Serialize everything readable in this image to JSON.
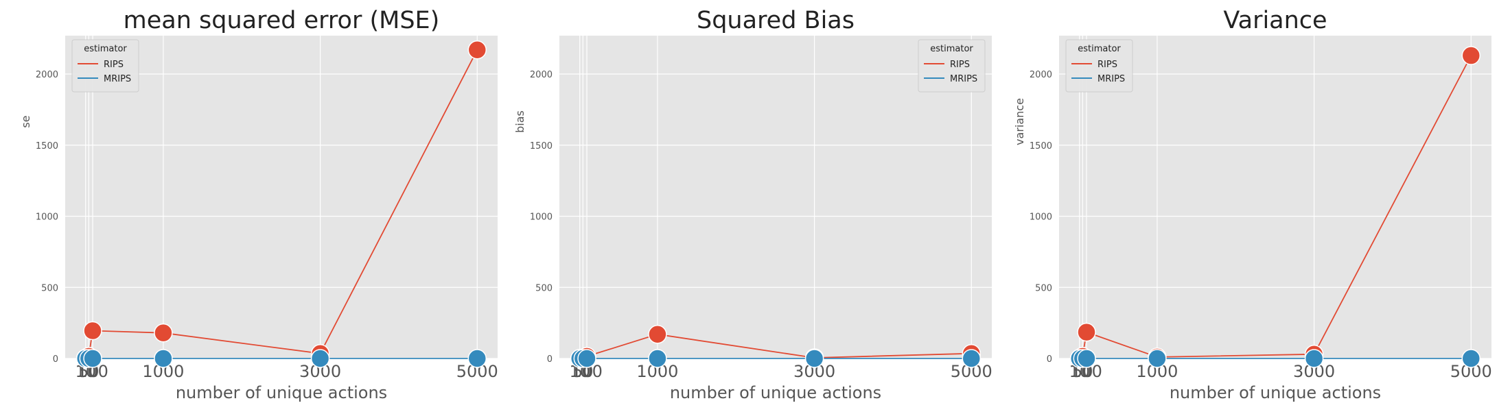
{
  "figure": {
    "background": "#ffffff"
  },
  "style": {
    "plot_bg": "#e5e5e5",
    "grid_color": "#ffffff",
    "tick_color": "#555555",
    "label_color": "#555555",
    "title_color": "#222222",
    "rips_color": "#e24a33",
    "mrips_color": "#348abd"
  },
  "chart_data": [
    {
      "type": "line",
      "title": "mean squared error (MSE)",
      "xlabel": "number of unique actions",
      "ylabel": "se",
      "x": [
        10,
        50,
        100,
        1000,
        3000,
        5000
      ],
      "x_tick_labels": [
        "10",
        "50",
        "100",
        "1000",
        "3000",
        "5000"
      ],
      "xlim": [
        -250,
        5260
      ],
      "ylim": [
        0,
        2270
      ],
      "yticks": [
        0,
        500,
        1000,
        1500,
        2000
      ],
      "grid": true,
      "legend": {
        "title": "estimator",
        "placement": "top-left",
        "entries": [
          "RIPS",
          "MRIPS"
        ]
      },
      "series": [
        {
          "name": "RIPS",
          "values": [
            2,
            15,
            195,
            180,
            35,
            2170
          ]
        },
        {
          "name": "MRIPS",
          "values": [
            0,
            0,
            0,
            0,
            0,
            0
          ]
        }
      ]
    },
    {
      "type": "line",
      "title": "Squared Bias",
      "xlabel": "number of unique actions",
      "ylabel": "bias",
      "x": [
        10,
        50,
        100,
        1000,
        3000,
        5000
      ],
      "x_tick_labels": [
        "10",
        "50",
        "100",
        "1000",
        "3000",
        "5000"
      ],
      "xlim": [
        -250,
        5260
      ],
      "ylim": [
        0,
        2270
      ],
      "yticks": [
        0,
        500,
        1000,
        1500,
        2000
      ],
      "grid": true,
      "legend": {
        "title": "estimator",
        "placement": "top-right",
        "entries": [
          "RIPS",
          "MRIPS"
        ]
      },
      "series": [
        {
          "name": "RIPS",
          "values": [
            1,
            3,
            15,
            170,
            5,
            35
          ]
        },
        {
          "name": "MRIPS",
          "values": [
            0,
            0,
            0,
            0,
            0,
            0
          ]
        }
      ]
    },
    {
      "type": "line",
      "title": "Variance",
      "xlabel": "number of unique actions",
      "ylabel": "variance",
      "x": [
        10,
        50,
        100,
        1000,
        3000,
        5000
      ],
      "x_tick_labels": [
        "10",
        "50",
        "100",
        "1000",
        "3000",
        "5000"
      ],
      "xlim": [
        -250,
        5260
      ],
      "ylim": [
        0,
        2270
      ],
      "yticks": [
        0,
        500,
        1000,
        1500,
        2000
      ],
      "grid": true,
      "legend": {
        "title": "estimator",
        "placement": "top-left",
        "entries": [
          "RIPS",
          "MRIPS"
        ]
      },
      "series": [
        {
          "name": "RIPS",
          "values": [
            2,
            15,
            185,
            10,
            30,
            2130
          ]
        },
        {
          "name": "MRIPS",
          "values": [
            0,
            0,
            0,
            0,
            0,
            0
          ]
        }
      ]
    }
  ]
}
